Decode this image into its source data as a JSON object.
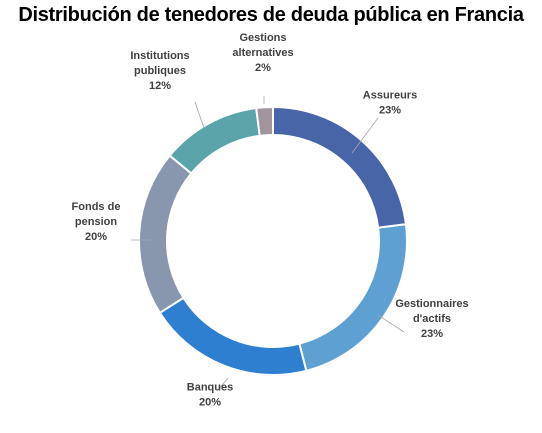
{
  "chart_data": {
    "type": "pie",
    "variant": "doughnut",
    "title": "Distribución de tenedores de deuda pública en Francia",
    "start_angle_deg": 0,
    "direction": "clockwise",
    "slices": [
      {
        "lines": [
          "Assureurs",
          "23%"
        ],
        "value": 23,
        "color": "#4865A8"
      },
      {
        "lines": [
          "Gestionnaires",
          "d'actifs",
          "23%"
        ],
        "value": 23,
        "color": "#5FA0D2"
      },
      {
        "lines": [
          "Banques",
          "20%"
        ],
        "value": 20,
        "color": "#2F7FD1"
      },
      {
        "lines": [
          "Fonds de",
          "pension",
          "20%"
        ],
        "value": 20,
        "color": "#8896AE"
      },
      {
        "lines": [
          "Institutions",
          "publiques",
          "12%"
        ],
        "value": 12,
        "color": "#5BA5AA"
      },
      {
        "lines": [
          "Gestions",
          "alternatives",
          "2%"
        ],
        "value": 2,
        "color": "#A3959E"
      }
    ]
  }
}
